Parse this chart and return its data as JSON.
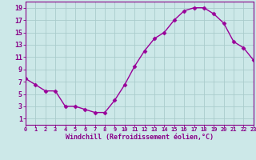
{
  "x": [
    0,
    1,
    2,
    3,
    4,
    5,
    6,
    7,
    8,
    9,
    10,
    11,
    12,
    13,
    14,
    15,
    16,
    17,
    18,
    19,
    20,
    21,
    22,
    23
  ],
  "y": [
    7.5,
    6.5,
    5.5,
    5.5,
    3.0,
    3.0,
    2.5,
    2.0,
    2.0,
    4.0,
    6.5,
    9.5,
    12.0,
    14.0,
    15.0,
    17.0,
    18.5,
    19.0,
    19.0,
    18.0,
    16.5,
    13.5,
    12.5,
    10.5
  ],
  "xlabel": "Windchill (Refroidissement éolien,°C)",
  "xlim": [
    0,
    23
  ],
  "ylim": [
    0,
    20
  ],
  "yticks": [
    1,
    3,
    5,
    7,
    9,
    11,
    13,
    15,
    17,
    19
  ],
  "xticks": [
    0,
    1,
    2,
    3,
    4,
    5,
    6,
    7,
    8,
    9,
    10,
    11,
    12,
    13,
    14,
    15,
    16,
    17,
    18,
    19,
    20,
    21,
    22,
    23
  ],
  "line_color": "#990099",
  "marker": "D",
  "marker_size": 2.5,
  "bg_color": "#cce8e8",
  "grid_color": "#aacccc",
  "spine_color": "#880088",
  "tick_label_color": "#880088",
  "xlabel_color": "#880088",
  "line_width": 1.0
}
